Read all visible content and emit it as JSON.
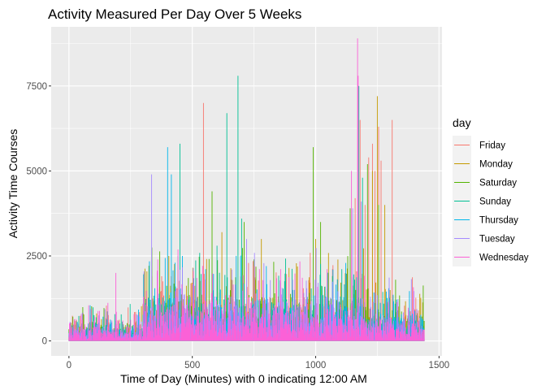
{
  "chart_data": {
    "type": "line",
    "title": "Activity Measured Per Day Over 5 Weeks",
    "xlabel": "Time of Day (Minutes) with 0 indicating 12:00 AM",
    "ylabel": "Activity Time Courses",
    "xlim": [
      -72,
      1512
    ],
    "ylim": [
      -440,
      9240
    ],
    "x_ticks": [
      0,
      500,
      1000,
      1500
    ],
    "x_tick_labels": [
      "0",
      "500",
      "1000",
      "1500"
    ],
    "y_ticks": [
      0,
      2500,
      5000,
      7500
    ],
    "y_tick_labels": [
      "0",
      "2500",
      "5000",
      "7500"
    ],
    "grid": true,
    "legend": {
      "title": "day",
      "position": "right"
    },
    "series": [
      {
        "name": "Friday",
        "color": "#F8766D",
        "peaks": [
          [
            545,
            7000
          ],
          [
            1160,
            4200
          ],
          [
            1180,
            6500
          ],
          [
            1200,
            4000
          ],
          [
            1215,
            5400
          ],
          [
            1230,
            5800
          ],
          [
            1240,
            5000
          ],
          [
            1255,
            6300
          ],
          [
            1265,
            5300
          ],
          [
            1310,
            6500
          ]
        ]
      },
      {
        "name": "Monday",
        "color": "#C49A00",
        "peaks": [
          [
            405,
            2500
          ],
          [
            620,
            3200
          ],
          [
            780,
            3000
          ],
          [
            1000,
            3000
          ],
          [
            1230,
            5000
          ],
          [
            1250,
            7200
          ],
          [
            1280,
            4000
          ]
        ]
      },
      {
        "name": "Saturday",
        "color": "#53B400",
        "peaks": [
          [
            580,
            4400
          ],
          [
            710,
            3500
          ],
          [
            750,
            2400
          ],
          [
            990,
            5700
          ],
          [
            1020,
            3500
          ],
          [
            1140,
            3900
          ],
          [
            1210,
            5200
          ],
          [
            1255,
            4000
          ]
        ]
      },
      {
        "name": "Sunday",
        "color": "#00C094",
        "peaks": [
          [
            450,
            5800
          ],
          [
            600,
            2800
          ],
          [
            640,
            6700
          ],
          [
            685,
            7800
          ],
          [
            700,
            3600
          ],
          [
            1175,
            7500
          ],
          [
            1190,
            4800
          ]
        ]
      },
      {
        "name": "Thursday",
        "color": "#00B6EB",
        "peaks": [
          [
            400,
            5700
          ],
          [
            415,
            4900
          ],
          [
            430,
            2300
          ],
          [
            460,
            2500
          ],
          [
            800,
            2200
          ],
          [
            1070,
            2100
          ]
        ]
      },
      {
        "name": "Tuesday",
        "color": "#A58AFF",
        "peaks": [
          [
            335,
            4900
          ],
          [
            720,
            3000
          ],
          [
            1150,
            3900
          ],
          [
            1185,
            4100
          ]
        ]
      },
      {
        "name": "Wednesday",
        "color": "#FB61D7",
        "peaks": [
          [
            190,
            2000
          ],
          [
            360,
            2400
          ],
          [
            1145,
            5000
          ],
          [
            1170,
            8900
          ],
          [
            1172,
            7800
          ]
        ]
      }
    ]
  }
}
